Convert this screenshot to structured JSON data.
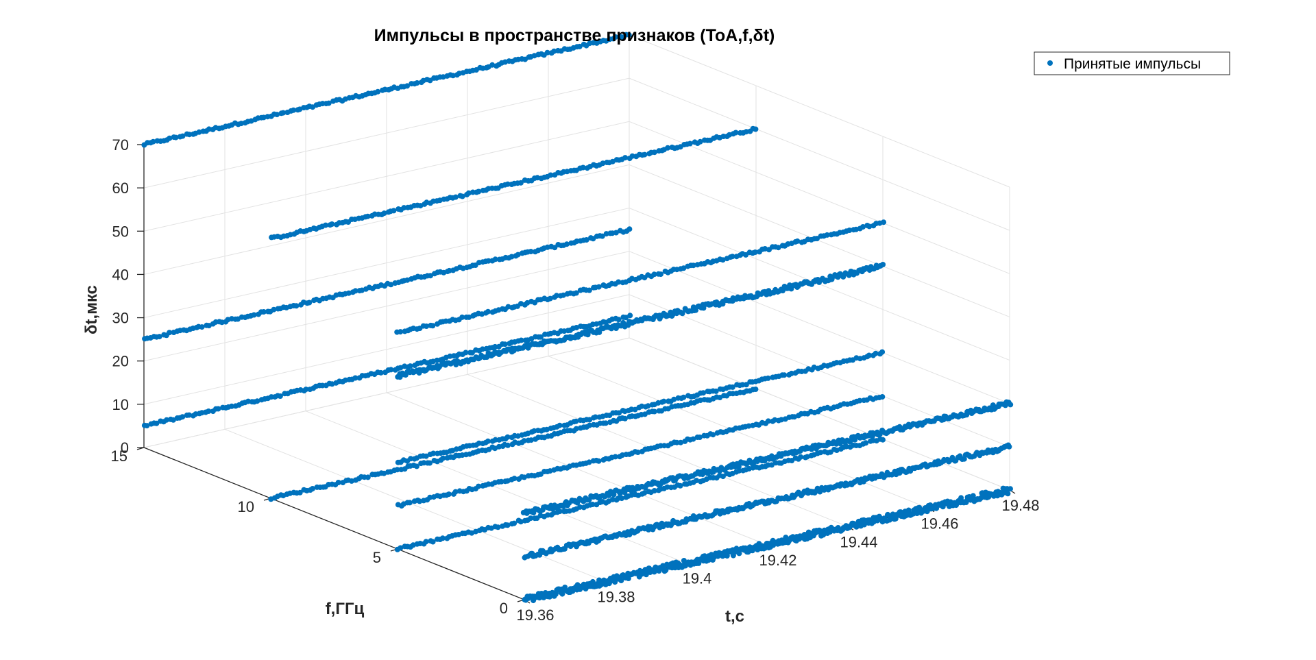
{
  "chart_data": {
    "type": "scatter",
    "projection": "3d",
    "title": "Импульсы в пространстве признаков (ToA,f,δt)",
    "xlabel": "t,c",
    "ylabel": "f,ГГц",
    "zlabel": "δt,мкс",
    "xlim": [
      19.36,
      19.48
    ],
    "ylim": [
      0,
      15
    ],
    "zlim": [
      0,
      70
    ],
    "xticks": [
      "19.36",
      "19.38",
      "19.4",
      "19.42",
      "19.44",
      "19.46",
      "19.48"
    ],
    "yticks": [
      "0",
      "5",
      "10",
      "15"
    ],
    "zticks": [
      "0",
      "10",
      "20",
      "30",
      "40",
      "50",
      "60",
      "70"
    ],
    "grid": true,
    "legend": {
      "position": "top-right",
      "entries": [
        "Принятые импульсы"
      ]
    },
    "marker_color": "#0072BD",
    "series": [
      {
        "name": "Принятые импульсы",
        "tracks": [
          {
            "f": 15,
            "dt": 70,
            "t_start": 19.36,
            "t_end": 19.48,
            "density": 1
          },
          {
            "f": 15,
            "dt": 25,
            "t_start": 19.36,
            "t_end": 19.48,
            "density": 1
          },
          {
            "f": 15,
            "dt": 5,
            "t_start": 19.36,
            "t_end": 19.48,
            "density": 1
          },
          {
            "f": 10,
            "dt": 60,
            "t_start": 19.36,
            "t_end": 19.48,
            "density": 1
          },
          {
            "f": 10,
            "dt": 0,
            "t_start": 19.36,
            "t_end": 19.48,
            "density": 1
          },
          {
            "f": 5,
            "dt": 50,
            "t_start": 19.36,
            "t_end": 19.48,
            "density": 1
          },
          {
            "f": 5,
            "dt": 40,
            "t_start": 19.36,
            "t_end": 19.48,
            "density": 2
          },
          {
            "f": 5,
            "dt": 20,
            "t_start": 19.36,
            "t_end": 19.48,
            "density": 1
          },
          {
            "f": 5,
            "dt": 10,
            "t_start": 19.36,
            "t_end": 19.48,
            "density": 1
          },
          {
            "f": 5,
            "dt": 0,
            "t_start": 19.36,
            "t_end": 19.48,
            "density": 1
          },
          {
            "f": 0,
            "dt": 20,
            "t_start": 19.36,
            "t_end": 19.48,
            "density": 2
          },
          {
            "f": 0,
            "dt": 10,
            "t_start": 19.36,
            "t_end": 19.48,
            "density": 2
          },
          {
            "f": 0,
            "dt": 0,
            "t_start": 19.36,
            "t_end": 19.48,
            "density": 3
          }
        ]
      }
    ]
  }
}
